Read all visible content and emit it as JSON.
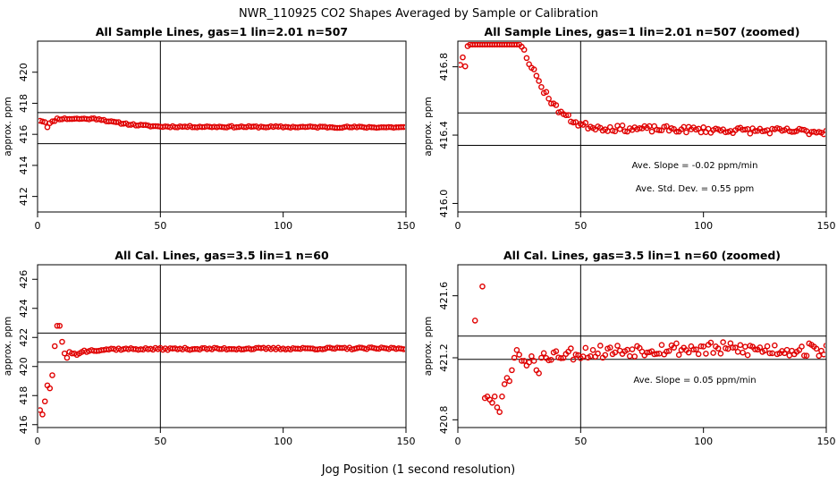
{
  "figure": {
    "title": "NWR_110925  CO2 Shapes Averaged by Sample or Calibration",
    "xlabel": "Jog Position (1 second resolution)"
  },
  "chart_data": [
    {
      "type": "scatter",
      "title": "All Sample Lines, gas=1 lin=2.01 n=507",
      "ylabel": "approx. ppm",
      "xlim": [
        0,
        150
      ],
      "ylim": [
        411,
        422
      ],
      "xticks": [
        "0",
        "50",
        "100",
        "150"
      ],
      "yticks": [
        "412",
        "414",
        "416",
        "418",
        "420"
      ],
      "hlines": [
        417.4,
        415.4
      ],
      "vline": 50,
      "annotations": [],
      "profile": {
        "kind": "sample",
        "seed": 11,
        "noise": 0.05,
        "curve": [
          [
            1,
            416.9
          ],
          [
            3,
            416.8
          ],
          [
            4,
            416.5
          ],
          [
            5,
            416.7
          ],
          [
            8,
            417.0
          ],
          [
            25,
            417.0
          ],
          [
            30,
            416.8
          ],
          [
            40,
            416.6
          ],
          [
            50,
            416.5
          ],
          [
            150,
            416.45
          ]
        ]
      }
    },
    {
      "type": "scatter",
      "title": "All Sample Lines, gas=1 lin=2.01 n=507 (zoomed)",
      "ylabel": "approx. ppm",
      "xlim": [
        0,
        150
      ],
      "ylim": [
        415.95,
        416.95
      ],
      "xticks": [
        "0",
        "50",
        "100",
        "150"
      ],
      "yticks": [
        "416.0",
        "416.4",
        "416.8"
      ],
      "hlines": [
        416.53,
        416.34
      ],
      "vline": 50,
      "annotations": [
        "Ave. Slope =  -0.02  ppm/min",
        "Ave. Std. Dev. =  0.55  ppm"
      ],
      "profile": {
        "kind": "sample",
        "seed": 23,
        "noise": 0.018,
        "cap": 416.93,
        "curve": [
          [
            1,
            416.82
          ],
          [
            2,
            416.86
          ],
          [
            3,
            416.8
          ],
          [
            4,
            416.92
          ],
          [
            8,
            416.95
          ],
          [
            25,
            416.95
          ],
          [
            30,
            416.8
          ],
          [
            35,
            416.66
          ],
          [
            40,
            416.56
          ],
          [
            45,
            416.5
          ],
          [
            50,
            416.46
          ],
          [
            60,
            416.44
          ],
          [
            150,
            416.42
          ]
        ]
      }
    },
    {
      "type": "scatter",
      "title": "All Cal. Lines, gas=3.5 lin=1 n=60",
      "ylabel": "approx. ppm",
      "xlim": [
        0,
        150
      ],
      "ylim": [
        415.8,
        427
      ],
      "xticks": [
        "0",
        "50",
        "100",
        "150"
      ],
      "yticks": [
        "416",
        "418",
        "420",
        "422",
        "424",
        "426"
      ],
      "hlines": [
        422.3,
        420.3
      ],
      "vline": 50,
      "annotations": [],
      "profile": {
        "kind": "cal",
        "seed": 37,
        "noise": 0.07,
        "early": [
          [
            1,
            417.0
          ],
          [
            2,
            416.7
          ],
          [
            3,
            417.6
          ],
          [
            4,
            418.7
          ],
          [
            5,
            418.5
          ],
          [
            6,
            419.4
          ],
          [
            7,
            421.4
          ],
          [
            8,
            422.8
          ],
          [
            9,
            422.8
          ],
          [
            10,
            421.7
          ],
          [
            11,
            420.9
          ],
          [
            12,
            420.6
          ],
          [
            13,
            421.0
          ],
          [
            14,
            420.9
          ],
          [
            15,
            420.9
          ],
          [
            16,
            420.8
          ],
          [
            17,
            420.9
          ],
          [
            18,
            421.0
          ],
          [
            19,
            421.1
          ],
          [
            20,
            421.0
          ]
        ],
        "curve": [
          [
            21,
            421.1
          ],
          [
            30,
            421.2
          ],
          [
            150,
            421.25
          ]
        ]
      }
    },
    {
      "type": "scatter",
      "title": "All Cal. Lines, gas=3.5 lin=1 n=60 (zoomed)",
      "ylabel": "approx. ppm",
      "xlim": [
        0,
        150
      ],
      "ylim": [
        420.75,
        421.8
      ],
      "xticks": [
        "0",
        "50",
        "100",
        "150"
      ],
      "yticks": [
        "420.8",
        "421.2",
        "421.6"
      ],
      "hlines": [
        421.34,
        421.19
      ],
      "vline": 50,
      "annotations": [
        "Ave. Slope =  0.05  ppm/min"
      ],
      "profile": {
        "kind": "cal",
        "seed": 53,
        "noise": 0.045,
        "early": [
          [
            7,
            421.44
          ],
          [
            10,
            421.66
          ],
          [
            11,
            420.94
          ],
          [
            12,
            420.95
          ],
          [
            13,
            420.93
          ],
          [
            14,
            420.91
          ],
          [
            15,
            420.95
          ],
          [
            16,
            420.88
          ],
          [
            17,
            420.85
          ],
          [
            18,
            420.95
          ],
          [
            19,
            421.03
          ],
          [
            20,
            421.07
          ],
          [
            21,
            421.05
          ],
          [
            22,
            421.12
          ],
          [
            23,
            421.2
          ],
          [
            24,
            421.25
          ],
          [
            25,
            421.22
          ],
          [
            26,
            421.18
          ],
          [
            27,
            421.18
          ],
          [
            28,
            421.15
          ],
          [
            29,
            421.17
          ],
          [
            30,
            421.21
          ],
          [
            31,
            421.18
          ],
          [
            32,
            421.12
          ],
          [
            33,
            421.1
          ],
          [
            34,
            421.2
          ],
          [
            35,
            421.23
          ]
        ],
        "curve": [
          [
            36,
            421.22
          ],
          [
            80,
            421.26
          ],
          [
            150,
            421.25
          ]
        ]
      }
    }
  ]
}
